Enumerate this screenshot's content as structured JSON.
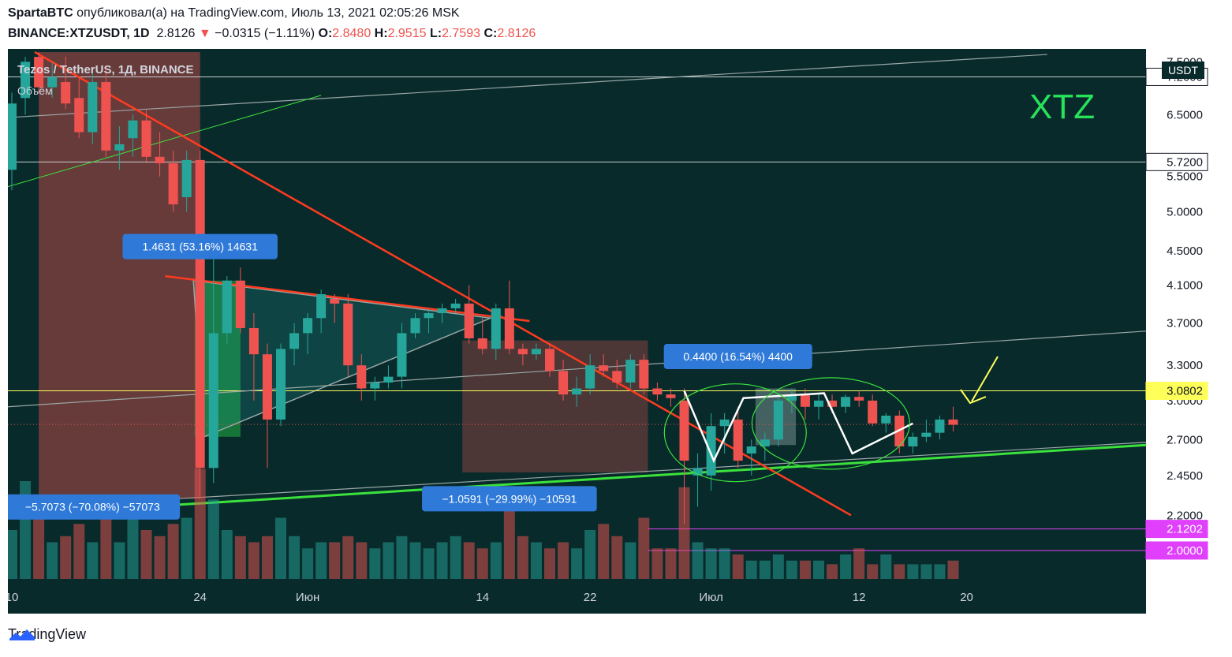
{
  "header": {
    "line1_author": "SpartaBTC",
    "line1_rest": "опубликовал(а) на TradingView.com, Июль 13, 2021 02:05:26 MSK",
    "symbol": "BINANCE:XTZUSDT, 1D",
    "last": "2.8126",
    "change_arrow": "▼",
    "change": "−0.0315 (−1.11%)",
    "o_label": "O:",
    "o": "2.8480",
    "h_label": "H:",
    "h": "2.9515",
    "l_label": "L:",
    "l": "2.7593",
    "c_label": "C:",
    "c": "2.8126"
  },
  "legend": {
    "title": "Tezos / TetherUS, 1Д, BINANCE",
    "volume": "Объём"
  },
  "big_label": "XTZ",
  "currency_badge": "USDT",
  "footer": {
    "brand": "TradingView",
    "logo": "tradingview-logo-icon"
  },
  "colors": {
    "bg": "#082a2b",
    "up": "#26a69a",
    "down": "#ef5350",
    "grid_text": "#d1d4dc",
    "green_line": "#3ce13c",
    "red_line": "#ff3b1f",
    "yellow": "#ffff5a",
    "magenta": "#e040fb",
    "label_blue": "#2f7ad8"
  },
  "chart_data": {
    "type": "candlestick",
    "y_scale": "log",
    "ylim": [
      1.9,
      7.7
    ],
    "y_ticks": [
      "7.5000",
      "6.5000",
      "5.5000",
      "5.0000",
      "4.5000",
      "4.1000",
      "3.7000",
      "3.3000",
      "3.0000",
      "2.7000",
      "2.4500",
      "2.2000"
    ],
    "x_ticks": [
      {
        "label": "10",
        "bar": 0
      },
      {
        "label": "24",
        "bar": 14
      },
      {
        "label": "Июн",
        "bar": 22
      },
      {
        "label": "14",
        "bar": 35
      },
      {
        "label": "22",
        "bar": 43
      },
      {
        "label": "Июл",
        "bar": 52
      },
      {
        "label": "12",
        "bar": 63
      },
      {
        "label": "20",
        "bar": 71
      }
    ],
    "price_labels": [
      {
        "value": 7.2,
        "text": "7.2000",
        "kind": "white"
      },
      {
        "value": 5.72,
        "text": "5.7200",
        "kind": "white"
      },
      {
        "value": 3.0802,
        "text": "3.0802",
        "kind": "yellow"
      },
      {
        "value": 2.1202,
        "text": "2.1202",
        "kind": "magenta"
      },
      {
        "value": 2.0,
        "text": "2.0000",
        "kind": "magenta"
      }
    ],
    "measure_labels": [
      {
        "text": "1.4631 (53.16%) 14631",
        "bar": 14,
        "value": 4.55
      },
      {
        "text": "−5.7073 (−70.08%) −57073",
        "bar": 6,
        "value": 2.25
      },
      {
        "text": "−1.0591 (−29.99%) −10591",
        "bar": 37,
        "value": 2.3
      },
      {
        "text": "0.4400 (16.54%) 4400",
        "bar": 54,
        "value": 3.38
      }
    ],
    "candles": [
      {
        "o": 5.6,
        "h": 6.9,
        "l": 5.3,
        "c": 6.7
      },
      {
        "o": 6.8,
        "h": 7.6,
        "l": 6.5,
        "c": 7.5
      },
      {
        "o": 7.6,
        "h": 7.7,
        "l": 6.9,
        "c": 7.0
      },
      {
        "o": 7.0,
        "h": 7.5,
        "l": 6.8,
        "c": 7.2
      },
      {
        "o": 7.1,
        "h": 7.6,
        "l": 6.6,
        "c": 6.7
      },
      {
        "o": 6.8,
        "h": 7.2,
        "l": 6.1,
        "c": 6.2
      },
      {
        "o": 6.2,
        "h": 7.3,
        "l": 6.0,
        "c": 7.1
      },
      {
        "o": 7.1,
        "h": 7.4,
        "l": 5.8,
        "c": 5.9
      },
      {
        "o": 5.9,
        "h": 6.3,
        "l": 5.6,
        "c": 6.0
      },
      {
        "o": 6.1,
        "h": 6.5,
        "l": 5.8,
        "c": 6.4
      },
      {
        "o": 6.4,
        "h": 6.6,
        "l": 5.7,
        "c": 5.8
      },
      {
        "o": 5.8,
        "h": 6.2,
        "l": 5.5,
        "c": 5.7
      },
      {
        "o": 5.7,
        "h": 5.9,
        "l": 5.0,
        "c": 5.1
      },
      {
        "o": 5.2,
        "h": 5.9,
        "l": 5.0,
        "c": 5.75
      },
      {
        "o": 5.75,
        "h": 5.9,
        "l": 2.3,
        "c": 2.5
      },
      {
        "o": 2.5,
        "h": 4.4,
        "l": 2.4,
        "c": 3.6
      },
      {
        "o": 3.6,
        "h": 4.2,
        "l": 3.5,
        "c": 4.15
      },
      {
        "o": 4.15,
        "h": 4.3,
        "l": 3.6,
        "c": 3.65
      },
      {
        "o": 3.65,
        "h": 3.8,
        "l": 3.0,
        "c": 3.4
      },
      {
        "o": 3.4,
        "h": 3.5,
        "l": 2.5,
        "c": 2.85
      },
      {
        "o": 2.85,
        "h": 3.5,
        "l": 2.8,
        "c": 3.45
      },
      {
        "o": 3.45,
        "h": 3.7,
        "l": 3.3,
        "c": 3.6
      },
      {
        "o": 3.6,
        "h": 3.8,
        "l": 3.4,
        "c": 3.75
      },
      {
        "o": 3.75,
        "h": 4.05,
        "l": 3.6,
        "c": 4.0
      },
      {
        "o": 3.95,
        "h": 4.0,
        "l": 3.7,
        "c": 3.9
      },
      {
        "o": 3.9,
        "h": 4.0,
        "l": 3.2,
        "c": 3.3
      },
      {
        "o": 3.3,
        "h": 3.4,
        "l": 3.0,
        "c": 3.1
      },
      {
        "o": 3.1,
        "h": 3.2,
        "l": 3.0,
        "c": 3.15
      },
      {
        "o": 3.15,
        "h": 3.3,
        "l": 3.1,
        "c": 3.2
      },
      {
        "o": 3.2,
        "h": 3.7,
        "l": 3.1,
        "c": 3.6
      },
      {
        "o": 3.6,
        "h": 3.8,
        "l": 3.55,
        "c": 3.75
      },
      {
        "o": 3.75,
        "h": 3.85,
        "l": 3.6,
        "c": 3.8
      },
      {
        "o": 3.8,
        "h": 3.9,
        "l": 3.7,
        "c": 3.85
      },
      {
        "o": 3.85,
        "h": 3.95,
        "l": 3.8,
        "c": 3.9
      },
      {
        "o": 3.9,
        "h": 4.1,
        "l": 3.5,
        "c": 3.55
      },
      {
        "o": 3.55,
        "h": 3.75,
        "l": 3.4,
        "c": 3.45
      },
      {
        "o": 3.45,
        "h": 3.9,
        "l": 3.35,
        "c": 3.85
      },
      {
        "o": 3.85,
        "h": 4.15,
        "l": 3.4,
        "c": 3.45
      },
      {
        "o": 3.45,
        "h": 3.5,
        "l": 3.3,
        "c": 3.4
      },
      {
        "o": 3.4,
        "h": 3.5,
        "l": 3.35,
        "c": 3.45
      },
      {
        "o": 3.45,
        "h": 3.5,
        "l": 3.2,
        "c": 3.25
      },
      {
        "o": 3.25,
        "h": 3.35,
        "l": 3.0,
        "c": 3.05
      },
      {
        "o": 3.05,
        "h": 3.2,
        "l": 2.95,
        "c": 3.1
      },
      {
        "o": 3.1,
        "h": 3.4,
        "l": 3.05,
        "c": 3.3
      },
      {
        "o": 3.3,
        "h": 3.4,
        "l": 3.2,
        "c": 3.25
      },
      {
        "o": 3.25,
        "h": 3.35,
        "l": 3.1,
        "c": 3.15
      },
      {
        "o": 3.15,
        "h": 3.4,
        "l": 3.1,
        "c": 3.35
      },
      {
        "o": 3.35,
        "h": 3.4,
        "l": 3.05,
        "c": 3.1
      },
      {
        "o": 3.1,
        "h": 3.15,
        "l": 3.0,
        "c": 3.05
      },
      {
        "o": 3.05,
        "h": 3.1,
        "l": 2.95,
        "c": 3.02
      },
      {
        "o": 3.0,
        "h": 3.1,
        "l": 2.15,
        "c": 2.55
      },
      {
        "o": 2.45,
        "h": 2.6,
        "l": 2.25,
        "c": 2.5
      },
      {
        "o": 2.45,
        "h": 2.9,
        "l": 2.35,
        "c": 2.8
      },
      {
        "o": 2.8,
        "h": 2.9,
        "l": 2.6,
        "c": 2.85
      },
      {
        "o": 2.85,
        "h": 2.95,
        "l": 2.5,
        "c": 2.55
      },
      {
        "o": 2.6,
        "h": 2.7,
        "l": 2.45,
        "c": 2.65
      },
      {
        "o": 2.65,
        "h": 2.75,
        "l": 2.55,
        "c": 2.7
      },
      {
        "o": 2.7,
        "h": 3.05,
        "l": 2.65,
        "c": 3.0
      },
      {
        "o": 3.0,
        "h": 3.1,
        "l": 2.9,
        "c": 3.05
      },
      {
        "o": 3.05,
        "h": 3.1,
        "l": 2.85,
        "c": 2.95
      },
      {
        "o": 2.95,
        "h": 3.05,
        "l": 2.85,
        "c": 3.0
      },
      {
        "o": 3.0,
        "h": 3.05,
        "l": 2.9,
        "c": 2.95
      },
      {
        "o": 2.95,
        "h": 3.05,
        "l": 2.9,
        "c": 3.03
      },
      {
        "o": 3.03,
        "h": 3.08,
        "l": 2.95,
        "c": 3.0
      },
      {
        "o": 3.0,
        "h": 3.05,
        "l": 2.8,
        "c": 2.82
      },
      {
        "o": 2.82,
        "h": 2.9,
        "l": 2.75,
        "c": 2.88
      },
      {
        "o": 2.88,
        "h": 2.92,
        "l": 2.6,
        "c": 2.65
      },
      {
        "o": 2.65,
        "h": 2.75,
        "l": 2.6,
        "c": 2.72
      },
      {
        "o": 2.72,
        "h": 2.85,
        "l": 2.68,
        "c": 2.75
      },
      {
        "o": 2.75,
        "h": 2.88,
        "l": 2.7,
        "c": 2.85
      },
      {
        "o": 2.85,
        "h": 2.95,
        "l": 2.76,
        "c": 2.81
      }
    ],
    "volume": [
      40,
      80,
      55,
      30,
      35,
      45,
      30,
      50,
      30,
      65,
      40,
      35,
      45,
      50,
      90,
      65,
      40,
      35,
      30,
      35,
      50,
      35,
      25,
      30,
      30,
      35,
      30,
      25,
      30,
      35,
      30,
      25,
      30,
      35,
      30,
      25,
      30,
      60,
      35,
      30,
      25,
      30,
      25,
      40,
      45,
      35,
      30,
      50,
      25,
      25,
      75,
      30,
      25,
      25,
      20,
      15,
      15,
      20,
      15,
      15,
      15,
      12,
      20,
      25,
      12,
      20,
      12,
      12,
      12,
      12,
      15
    ]
  }
}
